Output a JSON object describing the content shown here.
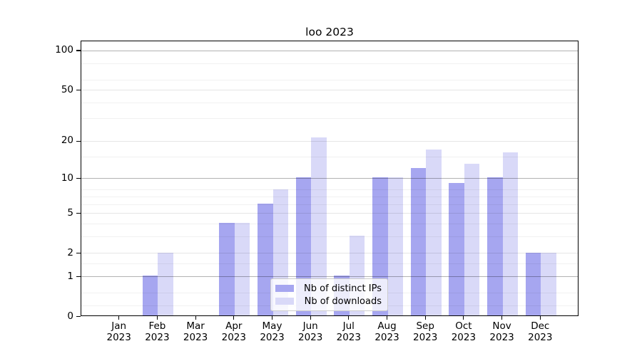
{
  "title": "loo 2023",
  "chart_data": {
    "type": "bar",
    "title": "loo 2023",
    "categories": [
      "Jan",
      "Feb",
      "Mar",
      "Apr",
      "May",
      "Jun",
      "Jul",
      "Aug",
      "Sep",
      "Oct",
      "Nov",
      "Dec"
    ],
    "year_label": "2023",
    "series": [
      {
        "name": "Nb of distinct IPs",
        "color": "#a6a6f0",
        "values": [
          0,
          1,
          0,
          4,
          6,
          10,
          1,
          10,
          12,
          9,
          10,
          2
        ]
      },
      {
        "name": "Nb of downloads",
        "color": "#d9d9f8",
        "values": [
          0,
          2,
          0,
          4,
          8,
          21,
          3,
          10,
          17,
          13,
          16,
          2
        ]
      }
    ],
    "xlabel": "",
    "ylabel": "",
    "yscale": "log10(1+v)",
    "yticks": [
      0,
      1,
      2,
      5,
      10,
      20,
      50,
      100
    ],
    "major_gridline_values": [
      1,
      10,
      100
    ],
    "sub_gridline_values": [
      2,
      5,
      20,
      50
    ],
    "minor_gridline_values": [
      0.2,
      0.5,
      1.5,
      3,
      4,
      6,
      7,
      8,
      15,
      30,
      40,
      60,
      80
    ],
    "ylim": [
      0,
      119
    ],
    "grid": true,
    "legend_position": "lower center"
  }
}
